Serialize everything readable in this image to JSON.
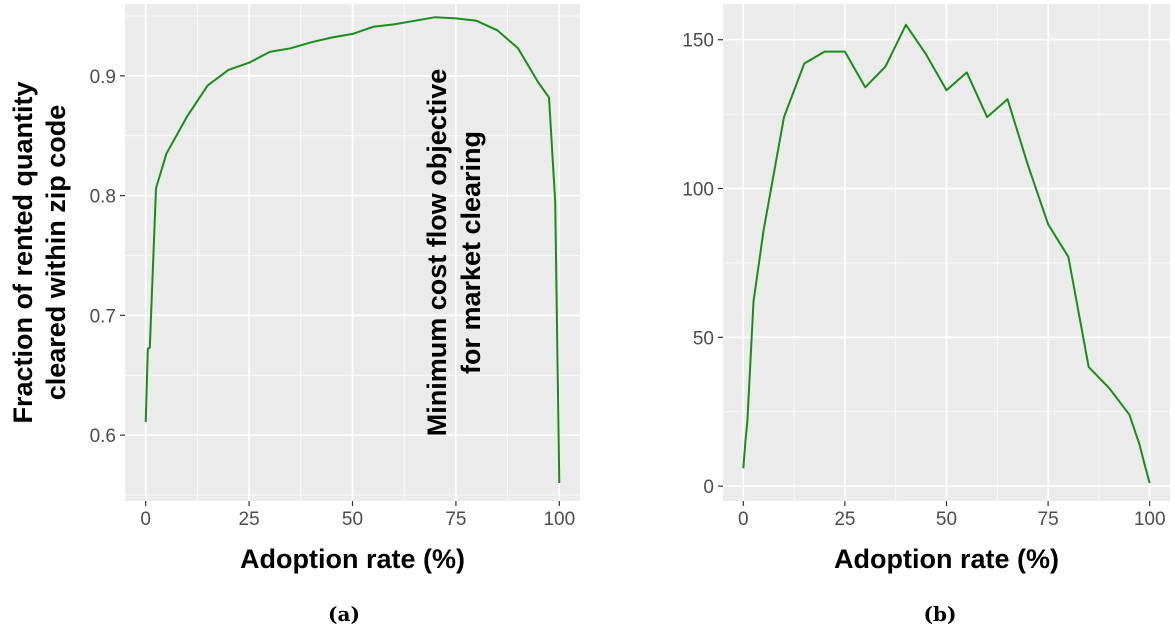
{
  "chart_data": [
    {
      "type": "line",
      "caption": "(a)",
      "xlabel": "Adoption rate (%)",
      "ylabel_lines": [
        "Fraction of rented quantity",
        "cleared within zip code"
      ],
      "xlim": [
        -5,
        105
      ],
      "ylim": [
        0.545,
        0.96
      ],
      "xticks": [
        0,
        25,
        50,
        75,
        100
      ],
      "yticks": [
        0.6,
        0.7,
        0.8,
        0.9
      ],
      "ytick_labels": [
        "0.6",
        "0.7",
        "0.8",
        "0.9"
      ],
      "grid": true,
      "color": "#1a8c1a",
      "x": [
        0,
        0.5,
        1,
        2.5,
        5,
        10,
        15,
        20,
        25,
        30,
        35,
        40,
        45,
        50,
        55,
        60,
        65,
        70,
        75,
        80,
        85,
        90,
        95,
        97.5,
        99,
        100
      ],
      "y": [
        0.611,
        0.672,
        0.673,
        0.806,
        0.835,
        0.866,
        0.892,
        0.905,
        0.911,
        0.92,
        0.923,
        0.928,
        0.932,
        0.935,
        0.941,
        0.943,
        0.946,
        0.949,
        0.948,
        0.946,
        0.938,
        0.923,
        0.894,
        0.882,
        0.795,
        0.56
      ]
    },
    {
      "type": "line",
      "caption": "(b)",
      "xlabel": "Adoption rate (%)",
      "ylabel_lines": [
        "Minimum cost flow objective",
        "for market clearing"
      ],
      "xlim": [
        -5,
        105
      ],
      "ylim": [
        -5,
        162
      ],
      "xticks": [
        0,
        25,
        50,
        75,
        100
      ],
      "yticks": [
        0,
        50,
        100,
        150
      ],
      "ytick_labels": [
        "0",
        "50",
        "100",
        "150"
      ],
      "grid": true,
      "color": "#1a8c1a",
      "x": [
        0,
        0.5,
        1,
        2.5,
        5,
        10,
        15,
        20,
        25,
        30,
        35,
        40,
        45,
        50,
        55,
        60,
        65,
        70,
        75,
        80,
        85,
        90,
        95,
        97.5,
        99,
        100
      ],
      "y": [
        6,
        15,
        22,
        62,
        86,
        124,
        142,
        146,
        146,
        134,
        141,
        155,
        145,
        133,
        139,
        124,
        130,
        108,
        88,
        77,
        40,
        33,
        24,
        14,
        6,
        1
      ]
    }
  ]
}
